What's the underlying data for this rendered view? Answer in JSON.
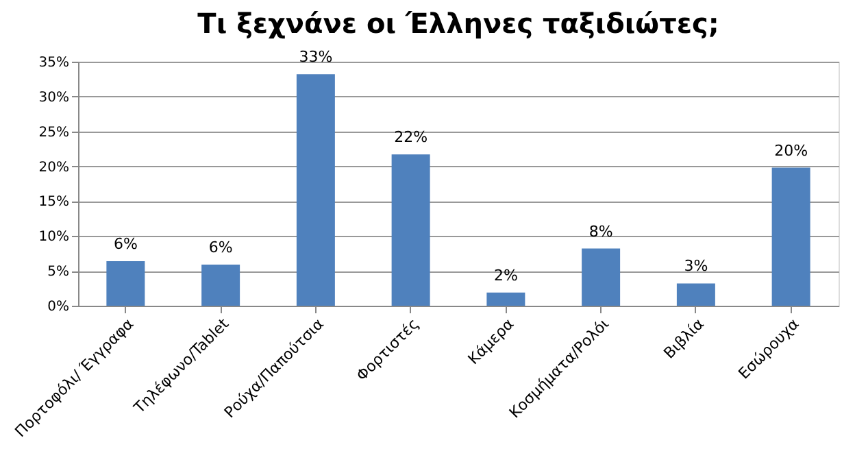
{
  "chart_data": {
    "type": "bar",
    "title": "Τι ξεχνάνε οι Έλληνες ταξιδιώτες;",
    "categories": [
      "Πορτοφόλι/ Έγγραφα",
      "Τηλέφωνο/Tablet",
      "Ρούχα/Παπούτσια",
      "Φορτιστές",
      "Κάμερα",
      "Κοσμήματα/Ρολόι",
      "Βιβλία",
      "Εσώρουχα"
    ],
    "values": [
      6.4,
      5.9,
      33.2,
      21.7,
      1.9,
      8.2,
      3.2,
      19.8
    ],
    "value_labels": [
      "6%",
      "6%",
      "33%",
      "22%",
      "2%",
      "8%",
      "3%",
      "20%"
    ],
    "color": "#4f81bd",
    "ylim": [
      0,
      35
    ],
    "yticks": [
      {
        "value": 0,
        "label": "0%"
      },
      {
        "value": 5,
        "label": "5%"
      },
      {
        "value": 10,
        "label": "10%"
      },
      {
        "value": 15,
        "label": "15%"
      },
      {
        "value": 20,
        "label": "20%"
      },
      {
        "value": 25,
        "label": "25%"
      },
      {
        "value": 30,
        "label": "30%"
      },
      {
        "value": 35,
        "label": "35%"
      }
    ],
    "grid": "y"
  }
}
